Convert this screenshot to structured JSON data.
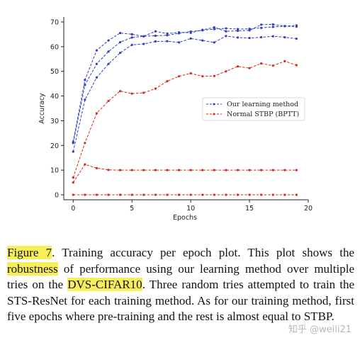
{
  "chart_data": {
    "type": "line",
    "xlabel": "Epochs",
    "ylabel": "Accuracy",
    "xlim": [
      -0.8,
      20
    ],
    "ylim": [
      -2,
      72
    ],
    "xticks": [
      0,
      5,
      10,
      15,
      20
    ],
    "yticks": [
      0,
      10,
      20,
      30,
      40,
      50,
      60,
      70
    ],
    "grid": false,
    "legend_position": "center-right",
    "legend": [
      {
        "label": "Our learning method",
        "color": "#2f3fbf",
        "marker": "dot"
      },
      {
        "label": "Normal STBP (BPTT)",
        "color": "#d62a1f",
        "marker": "dot"
      }
    ],
    "series": [
      {
        "group": "blue",
        "color": "#2f3fbf",
        "x": [
          0,
          1,
          2,
          3,
          4,
          5,
          6,
          7,
          8,
          9,
          10,
          11,
          12,
          13,
          14,
          15,
          16,
          17,
          18,
          19
        ],
        "values": [
          21.5,
          46.5,
          58.5,
          62.5,
          65.5,
          65,
          64.2,
          66.2,
          65.3,
          65.8,
          65.6,
          66.8,
          67.8,
          66.2,
          66.4,
          66.6,
          68.9,
          69,
          68.3,
          68.6
        ]
      },
      {
        "group": "blue",
        "color": "#2f3fbf",
        "x": [
          0,
          1,
          2,
          3,
          4,
          5,
          6,
          7,
          8,
          9,
          10,
          11,
          12,
          13,
          14,
          15,
          16,
          17,
          18,
          19
        ],
        "values": [
          21,
          44.5,
          53,
          58,
          61.8,
          63.7,
          64.2,
          64.4,
          64.6,
          65.4,
          66.1,
          66.6,
          67.1,
          67.4,
          67.1,
          67.2,
          67.6,
          68,
          68.3,
          68.1
        ]
      },
      {
        "group": "blue",
        "color": "#2f3fbf",
        "x": [
          0,
          1,
          2,
          3,
          4,
          5,
          6,
          7,
          8,
          9,
          10,
          11,
          12,
          13,
          14,
          15,
          16,
          17,
          18,
          19
        ],
        "values": [
          17.5,
          38.5,
          47.5,
          53,
          57.5,
          60.7,
          61.1,
          62.1,
          62.2,
          61.7,
          63.3,
          62.5,
          61.7,
          64.3,
          63.7,
          63.5,
          63.8,
          64.2,
          63.8,
          63.2
        ]
      },
      {
        "group": "red",
        "color": "#d62a1f",
        "x": [
          0,
          1,
          2,
          3,
          4,
          5,
          6,
          7,
          8,
          9,
          10,
          11,
          12,
          13,
          14,
          15,
          16,
          17,
          18,
          19
        ],
        "values": [
          7,
          21,
          33,
          38,
          42,
          41,
          41.3,
          43,
          46,
          48,
          49.2,
          48,
          48.1,
          50,
          52,
          51.3,
          53.2,
          52.3,
          54.1,
          52.5
        ]
      },
      {
        "group": "red",
        "color": "#d62a1f",
        "x": [
          0,
          1,
          2,
          3,
          4,
          5,
          6,
          7,
          8,
          9,
          10,
          11,
          12,
          13,
          14,
          15,
          16,
          17,
          18,
          19
        ],
        "values": [
          5,
          12.3,
          10.8,
          10.1,
          10,
          10,
          10,
          10,
          10,
          10,
          10,
          10,
          10,
          10,
          10,
          10,
          10,
          10,
          10,
          10
        ]
      },
      {
        "group": "red",
        "color": "#d62a1f",
        "x": [
          0,
          1,
          2,
          3,
          4,
          5,
          6,
          7,
          8,
          9,
          10,
          11,
          12,
          13,
          14,
          15,
          16,
          17,
          18,
          19
        ],
        "values": [
          0,
          0,
          0,
          0,
          0,
          0,
          0,
          0,
          0,
          0,
          0,
          0,
          0,
          0,
          0,
          0,
          0,
          0,
          0,
          0
        ]
      }
    ]
  },
  "caption": {
    "fig_label": "Figure 7",
    "part1": ". Training accuracy per epoch plot.  This plot shows the ",
    "hl1": "robustness",
    "part2": " of performance using our learning method over multiple tries on the ",
    "hl2": "DVS-CIFAR10",
    "part3": ".  Three random tries attempted to train the STS-ResNet for each training method. As for our training method, first five epochs where pre-training and the rest is almost equal to STBP."
  },
  "watermark": "知乎 @weili21"
}
